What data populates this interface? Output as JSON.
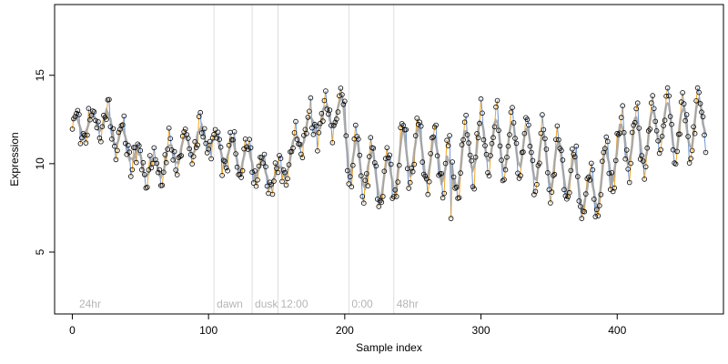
{
  "chart_data": {
    "type": "line",
    "xlabel": "Sample index",
    "ylabel": "Expression",
    "xlim": [
      -13,
      478
    ],
    "ylim": [
      1.5,
      19.0
    ],
    "x_ticks": [
      "0",
      "100",
      "200",
      "300",
      "400"
    ],
    "x_tick_values": [
      0,
      100,
      200,
      300,
      400
    ],
    "y_ticks": [
      "5",
      "10",
      "15"
    ],
    "y_tick_values": [
      5,
      10,
      15
    ],
    "grid": false,
    "annotations": [
      {
        "label": "24hr",
        "x": 3,
        "line": false
      },
      {
        "label": "dawn",
        "x": 104,
        "line": true
      },
      {
        "label": "dusk",
        "x": 132,
        "line": true
      },
      {
        "label": "12:00",
        "x": 151,
        "line": true
      },
      {
        "label": "0:00",
        "x": 203,
        "line": true
      },
      {
        "label": "48hr",
        "x": 236,
        "line": true
      }
    ],
    "series": [
      {
        "color": "#a0a0a0",
        "x": [
          0,
          10,
          20,
          30,
          40,
          50,
          60,
          70,
          80,
          90,
          100,
          110,
          120,
          130,
          140,
          150,
          160,
          170,
          180,
          190,
          200,
          205,
          210,
          220,
          230,
          240,
          250,
          260,
          270,
          280,
          290,
          300,
          310,
          320,
          330,
          340,
          350,
          360,
          370,
          380,
          390,
          400,
          410,
          420,
          430,
          440,
          450,
          460,
          465
        ],
        "values": [
          11.8,
          12.0,
          12.5,
          12.0,
          11.0,
          10.0,
          9.8,
          10.3,
          10.8,
          11.2,
          11.5,
          10.7,
          10.4,
          10.2,
          9.6,
          9.0,
          10.6,
          11.8,
          12.3,
          12.8,
          13.2,
          9.4,
          10.2,
          9.5,
          8.7,
          10.2,
          10.8,
          10.3,
          10.5,
          9.5,
          10.8,
          11.0,
          11.5,
          10.6,
          11.2,
          10.3,
          10.1,
          10.0,
          9.2,
          8.0,
          9.5,
          10.8,
          11.5,
          11.0,
          12.4,
          11.8,
          12.1,
          12.4,
          12.8
        ]
      }
    ]
  }
}
